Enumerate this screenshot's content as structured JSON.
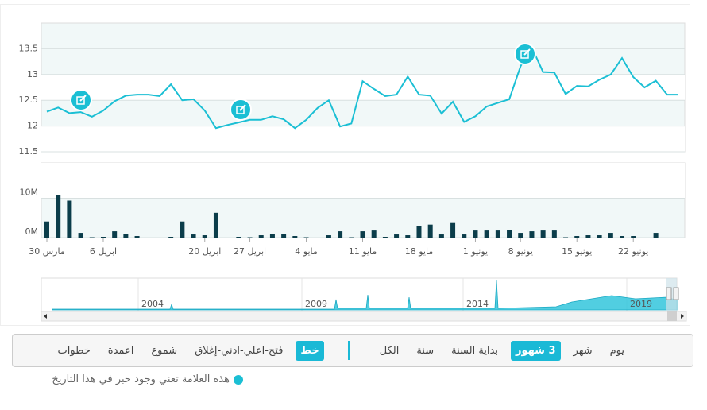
{
  "chart_data": [
    {
      "type": "line",
      "color": "#1bbfd4",
      "categories": [
        "30 مارس",
        null,
        null,
        null,
        null,
        "6 ابريل",
        null,
        null,
        null,
        null,
        null,
        null,
        null,
        null,
        "20 ابريل",
        null,
        null,
        null,
        "27 ابريل",
        null,
        null,
        null,
        null,
        "4 مايو",
        null,
        null,
        null,
        null,
        "11 مايو",
        null,
        null,
        null,
        null,
        "18 مايو",
        null,
        null,
        null,
        null,
        "1 يونيو",
        null,
        null,
        null,
        "8 يونيو",
        null,
        null,
        null,
        null,
        "15 يونيو",
        null,
        null,
        null,
        null,
        "22 يونيو",
        null,
        null,
        null,
        null
      ],
      "values": [
        12.28,
        12.36,
        12.25,
        12.27,
        12.18,
        12.3,
        12.48,
        12.59,
        12.61,
        12.61,
        12.58,
        12.81,
        12.5,
        12.52,
        12.3,
        11.96,
        12.02,
        12.07,
        12.12,
        12.12,
        12.19,
        12.13,
        11.96,
        12.12,
        12.35,
        12.5,
        11.99,
        12.05,
        12.87,
        12.72,
        12.58,
        12.61,
        12.96,
        12.61,
        12.59,
        12.24,
        12.47,
        12.08,
        12.19,
        12.38,
        12.45,
        12.52,
        13.16,
        13.53,
        13.05,
        13.04,
        12.62,
        12.78,
        12.77,
        12.9,
        13.0,
        13.32,
        12.95,
        12.75,
        12.88,
        12.61,
        12.61
      ],
      "ylim": [
        11.5,
        14
      ],
      "yticks": [
        11.5,
        12,
        12.5,
        13,
        13.5
      ]
    },
    {
      "type": "bar",
      "color": "#0b3d4a",
      "values": [
        4100000,
        10800000,
        9400000,
        1200000,
        100000,
        200000,
        1600000,
        1000000,
        400000,
        0,
        0,
        200000,
        4100000,
        800000,
        600000,
        6300000,
        0,
        200000,
        100000,
        600000,
        1000000,
        1000000,
        400000,
        100000,
        0,
        600000,
        1600000,
        100000,
        1600000,
        1800000,
        200000,
        800000,
        600000,
        2900000,
        3300000,
        800000,
        3700000,
        800000,
        1800000,
        1800000,
        1800000,
        2000000,
        1200000,
        1600000,
        1800000,
        1800000,
        100000,
        400000,
        600000,
        600000,
        1200000,
        400000,
        400000,
        0,
        1200000,
        0,
        0
      ],
      "ylim": [
        0,
        19000000
      ],
      "yticks": [
        {
          "value": 0,
          "label": "0M"
        },
        {
          "value": 10000000,
          "label": "10M"
        }
      ]
    }
  ],
  "navigator": {
    "labels": [
      "2004",
      "2009",
      "2014",
      "2019"
    ]
  },
  "toolbar": {
    "ranges": [
      "يوم",
      "شهر",
      "3 شهور",
      "بداية السنة",
      "سنة",
      "الكل"
    ],
    "selected_range": 2,
    "types": [
      "خط",
      "فتح-اعلي-ادني-إغلاق",
      "شموع",
      "اعمدة",
      "خطوات"
    ],
    "selected_type": 0
  },
  "note": "هذه العلامة تعني وجود خبر في هذا التاريخ"
}
